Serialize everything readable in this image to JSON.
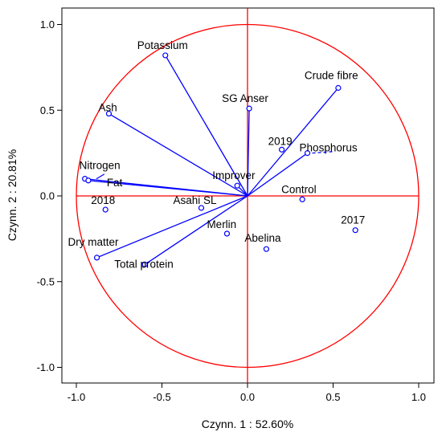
{
  "chart_data": {
    "type": "scatter",
    "xlabel": "Czynn. 1 : 52.60%",
    "ylabel": "Czynn. 2 : 20.81%",
    "xlim": [
      -1.1,
      1.1
    ],
    "ylim": [
      -1.1,
      1.1
    ],
    "xticks": [
      {
        "value": -1.0,
        "label": "-1.0"
      },
      {
        "value": -0.5,
        "label": "-0.5"
      },
      {
        "value": 0.0,
        "label": "0.0"
      },
      {
        "value": 0.5,
        "label": "0.5"
      },
      {
        "value": 1.0,
        "label": "1.0"
      }
    ],
    "yticks": [
      {
        "value": 1.0,
        "label": "1.0"
      },
      {
        "value": 0.5,
        "label": "0.5"
      },
      {
        "value": 0.0,
        "label": "0.0"
      },
      {
        "value": -0.5,
        "label": "-0.5"
      },
      {
        "value": -1.0,
        "label": "-1.0"
      }
    ],
    "grid": false,
    "unit_circle": true,
    "colors": {
      "vectors": "#0000ff",
      "circle": "#ff0000",
      "axes": "#ff0000"
    },
    "variables": [
      {
        "name": "Potassium",
        "x": -0.48,
        "y": 0.82
      },
      {
        "name": "Crude fibre",
        "x": 0.53,
        "y": 0.63
      },
      {
        "name": "SG Anser",
        "x": 0.01,
        "y": 0.51
      },
      {
        "name": "Ash",
        "x": -0.81,
        "y": 0.48
      },
      {
        "name": "Phosphorus",
        "x": 0.35,
        "y": 0.25
      },
      {
        "name": "Nitrogen",
        "x": -0.95,
        "y": 0.1
      },
      {
        "name": "Fat",
        "x": -0.93,
        "y": 0.09
      },
      {
        "name": "Improver",
        "x": -0.06,
        "y": 0.06
      },
      {
        "name": "Dry matter",
        "x": -0.88,
        "y": -0.36
      },
      {
        "name": "Total protein",
        "x": -0.6,
        "y": -0.4
      }
    ],
    "points": [
      {
        "name": "2019",
        "x": 0.2,
        "y": 0.27
      },
      {
        "name": "Control",
        "x": 0.32,
        "y": -0.02
      },
      {
        "name": "2018",
        "x": -0.83,
        "y": -0.08
      },
      {
        "name": "Asahi SL",
        "x": -0.27,
        "y": -0.07
      },
      {
        "name": "2017",
        "x": 0.63,
        "y": -0.2
      },
      {
        "name": "Merlin",
        "x": -0.12,
        "y": -0.22
      },
      {
        "name": "Abelina",
        "x": 0.11,
        "y": -0.31
      }
    ]
  }
}
